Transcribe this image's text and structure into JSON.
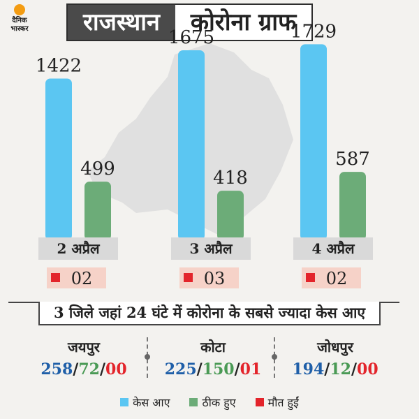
{
  "brand": {
    "line1": "दैनिक",
    "line2": "भास्कर"
  },
  "header": {
    "left": "राजस्थान",
    "right": "कोरोना ग्राफ"
  },
  "colors": {
    "cases": "#5bc6f2",
    "recovered": "#6cac78",
    "deaths": "#e3242b",
    "background": "#f3f2ef"
  },
  "chart_data": {
    "type": "bar",
    "categories": [
      "2 अप्रैल",
      "3 अप्रैल",
      "4 अप्रैल"
    ],
    "series": [
      {
        "name": "केस आए",
        "values": [
          1422,
          1675,
          1729
        ]
      },
      {
        "name": "ठीक हुए",
        "values": [
          499,
          418,
          587
        ]
      },
      {
        "name": "मौत हुईं",
        "values": [
          "02",
          "03",
          "02"
        ]
      }
    ],
    "title": "",
    "xlabel": "",
    "ylabel": "",
    "grid": false,
    "legend": "bottom"
  },
  "subtitle": "3 जिले जहां 24 घंटे में कोरोना के सबसे ज्यादा केस आए",
  "cities": [
    {
      "name": "जयपुर",
      "cases": "258",
      "recovered": "72",
      "deaths": "00"
    },
    {
      "name": "कोटा",
      "cases": "225",
      "recovered": "150",
      "deaths": "01"
    },
    {
      "name": "जोधपुर",
      "cases": "194",
      "recovered": "12",
      "deaths": "00"
    }
  ],
  "legend": [
    {
      "label": "केस आए",
      "color": "#5bc6f2"
    },
    {
      "label": "ठीक हुए",
      "color": "#6cac78"
    },
    {
      "label": "मौत हुईं",
      "color": "#e3242b"
    }
  ]
}
